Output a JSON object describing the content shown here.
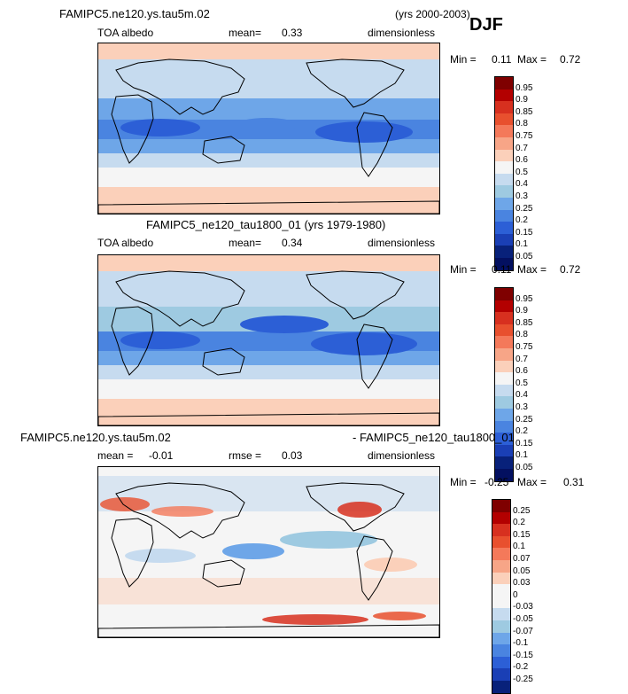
{
  "djf_label": "DJF",
  "panels": [
    {
      "title": "FAMIPC5.ne120.ys.tau5m.02",
      "years": "(yrs 2000-2003)",
      "variable": "TOA albedo",
      "stat_label": "mean=",
      "stat_value": "0.33",
      "units": "dimensionless",
      "min_label": "Min =",
      "min_value": "0.11",
      "max_label": "Max =",
      "max_value": "0.72",
      "colorbar": [
        "0.95",
        "0.9",
        "0.85",
        "0.8",
        "0.75",
        "0.7",
        "0.6",
        "0.5",
        "0.4",
        "0.3",
        "0.25",
        "0.2",
        "0.15",
        "0.1",
        "0.05"
      ]
    },
    {
      "title": "FAMIPC5_ne120_tau1800_01 (yrs 1979-1980)",
      "variable": "TOA albedo",
      "stat_label": "mean=",
      "stat_value": "0.34",
      "units": "dimensionless",
      "min_label": "Min =",
      "min_value": "0.11",
      "max_label": "Max =",
      "max_value": "0.72",
      "colorbar": [
        "0.95",
        "0.9",
        "0.85",
        "0.8",
        "0.75",
        "0.7",
        "0.6",
        "0.5",
        "0.4",
        "0.3",
        "0.25",
        "0.2",
        "0.15",
        "0.1",
        "0.05"
      ]
    },
    {
      "title": "FAMIPC5.ne120.ys.tau5m.02",
      "title_right": "- FAMIPC5_ne120_tau1800_01",
      "stat_label": "mean =",
      "stat_value": "-0.01",
      "rmse_label": "rmse =",
      "rmse_value": "0.03",
      "units": "dimensionless",
      "min_label": "Min =",
      "min_value": "-0.25",
      "max_label": "Max =",
      "max_value": "0.31",
      "colorbar": [
        "0.25",
        "0.2",
        "0.15",
        "0.1",
        "0.07",
        "0.05",
        "0.03",
        "0",
        "-0.03",
        "-0.05",
        "-0.07",
        "-0.1",
        "-0.15",
        "-0.2",
        "-0.25"
      ]
    }
  ],
  "colors": {
    "albedo_scale": [
      "#7f0000",
      "#b30000",
      "#d7301f",
      "#e8502e",
      "#f4795a",
      "#f7a587",
      "#fbd0ba",
      "#f5f5f5",
      "#c6dbef",
      "#9ecae1",
      "#6ea6e8",
      "#4a84e0",
      "#2c5fd6",
      "#1a3fb5",
      "#08217a",
      "#031060"
    ],
    "diff_scale": [
      "#7f0000",
      "#b30000",
      "#d7301f",
      "#e8502e",
      "#f4795a",
      "#f7a587",
      "#fbd0ba",
      "#f5f5f5",
      "#f5f5f5",
      "#c6dbef",
      "#9ecae1",
      "#6ea6e8",
      "#4a84e0",
      "#2c5fd6",
      "#1a3fb5",
      "#08217a"
    ],
    "coastline": "#000000"
  }
}
